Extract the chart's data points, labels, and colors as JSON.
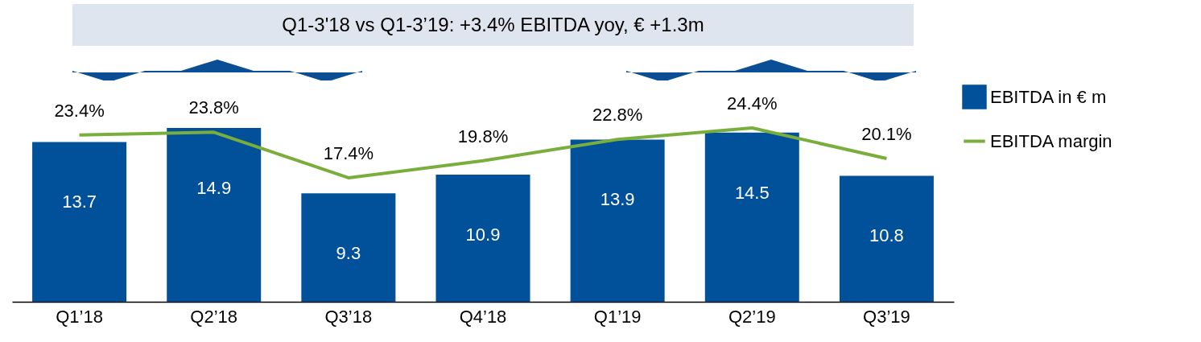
{
  "chart_data": {
    "type": "bar",
    "title": "Q1-3'18 vs Q1-3’19: +3.4% EBITDA yoy, € +1.3m",
    "categories": [
      "Q1’18",
      "Q2’18",
      "Q3’18",
      "Q4’18",
      "Q1’19",
      "Q2’19",
      "Q3’19"
    ],
    "series": [
      {
        "name": "EBITDA in € m",
        "color": "#00509a",
        "values": [
          13.7,
          14.9,
          9.3,
          10.9,
          13.9,
          14.5,
          10.8
        ]
      },
      {
        "name": "EBITDA margin",
        "type": "line",
        "axis": "y2",
        "color": "#7aae3c",
        "values": [
          23.4,
          23.8,
          17.4,
          19.8,
          22.8,
          24.4,
          20.1
        ],
        "value_labels": [
          "23.4%",
          "23.8%",
          "17.4%",
          "19.8%",
          "22.8%",
          "24.4%",
          "20.1%"
        ]
      }
    ],
    "data_labels": true,
    "legend": "right",
    "tick_labels": "x"
  }
}
